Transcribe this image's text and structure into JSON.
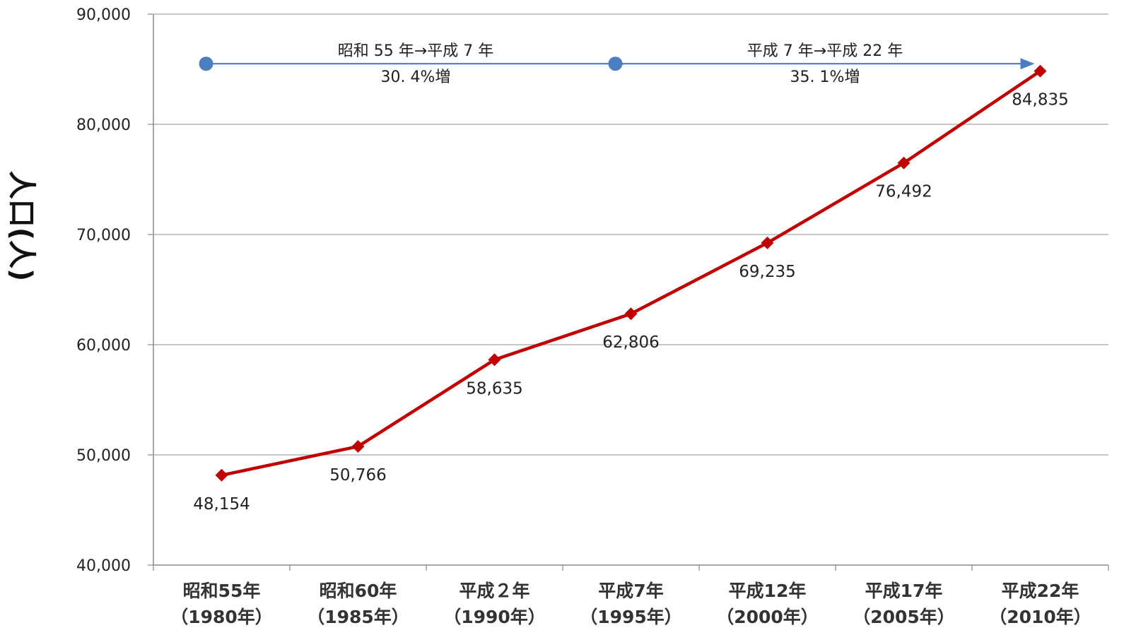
{
  "chart_data": {
    "type": "line",
    "title": "",
    "xlabel": "",
    "ylabel": "人口(人)",
    "ylim": [
      40000,
      90000
    ],
    "yticks": [
      40000,
      50000,
      60000,
      70000,
      80000,
      90000
    ],
    "ytick_labels": [
      "40,000",
      "50,000",
      "60,000",
      "70,000",
      "80,000",
      "90,000"
    ],
    "grid": true,
    "categories": [
      {
        "line1": "昭和55年",
        "line2": "（1980年）"
      },
      {
        "line1": "昭和60年",
        "line2": "（1985年）"
      },
      {
        "line1": "平成２年",
        "line2": "（1990年）"
      },
      {
        "line1": "平成7年",
        "line2": "（1995年）"
      },
      {
        "line1": "平成12年",
        "line2": "（2000年）"
      },
      {
        "line1": "平成17年",
        "line2": "（2005年）"
      },
      {
        "line1": "平成22年",
        "line2": "（2010年）"
      }
    ],
    "series": [
      {
        "values": [
          48154,
          50766,
          58635,
          62806,
          69235,
          76492,
          84835
        ],
        "labels": [
          "48,154",
          "50,766",
          "58,635",
          "62,806",
          "69,235",
          "76,492",
          "84,835"
        ],
        "color": "#c00000"
      }
    ],
    "annotations": [
      {
        "from_index": 0,
        "to_index": 3,
        "value": 85500,
        "line1": "昭和 55 年→平成 7 年",
        "line2": "30. 4%増",
        "color": "#4a7ec0"
      },
      {
        "from_index": 3,
        "to_index": 6,
        "value": 85500,
        "line1": "平成 7 年→平成 22 年",
        "line2": "35. 1%増",
        "color": "#4a7ec0"
      }
    ]
  }
}
